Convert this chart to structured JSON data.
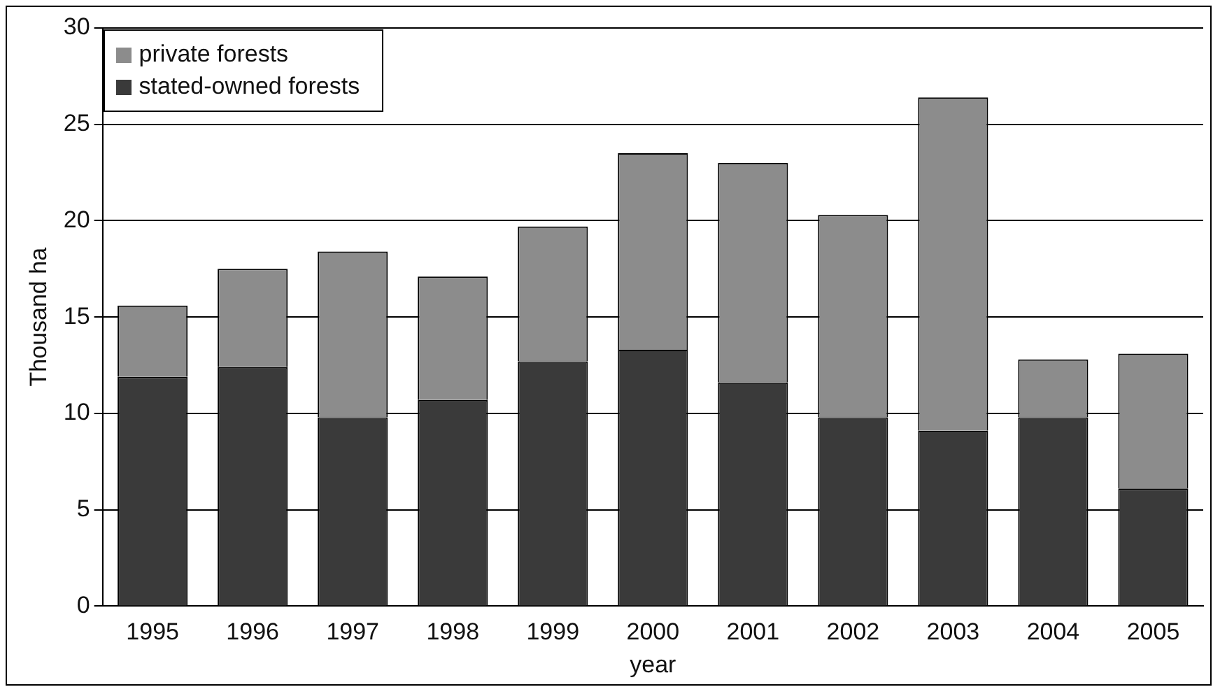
{
  "chart_data": {
    "type": "bar",
    "stacked": true,
    "xlabel": "year",
    "ylabel": "Thousand ha",
    "categories": [
      "1995",
      "1996",
      "1997",
      "1998",
      "1999",
      "2000",
      "2001",
      "2002",
      "2003",
      "2004",
      "2005"
    ],
    "series": [
      {
        "name": "stated-owned forests",
        "color": "#3a3a3a",
        "values": [
          11.9,
          12.4,
          9.8,
          10.7,
          12.7,
          13.3,
          11.6,
          9.8,
          9.1,
          9.8,
          6.1
        ]
      },
      {
        "name": "private forests",
        "color": "#8c8c8c",
        "values": [
          3.7,
          5.1,
          8.6,
          6.4,
          7.0,
          10.2,
          11.4,
          10.5,
          17.3,
          3.0,
          7.0
        ]
      }
    ],
    "ylim": [
      0,
      30
    ],
    "yticks": [
      0,
      5,
      10,
      15,
      20,
      25,
      30
    ],
    "grid": "y",
    "legend": "top left"
  }
}
